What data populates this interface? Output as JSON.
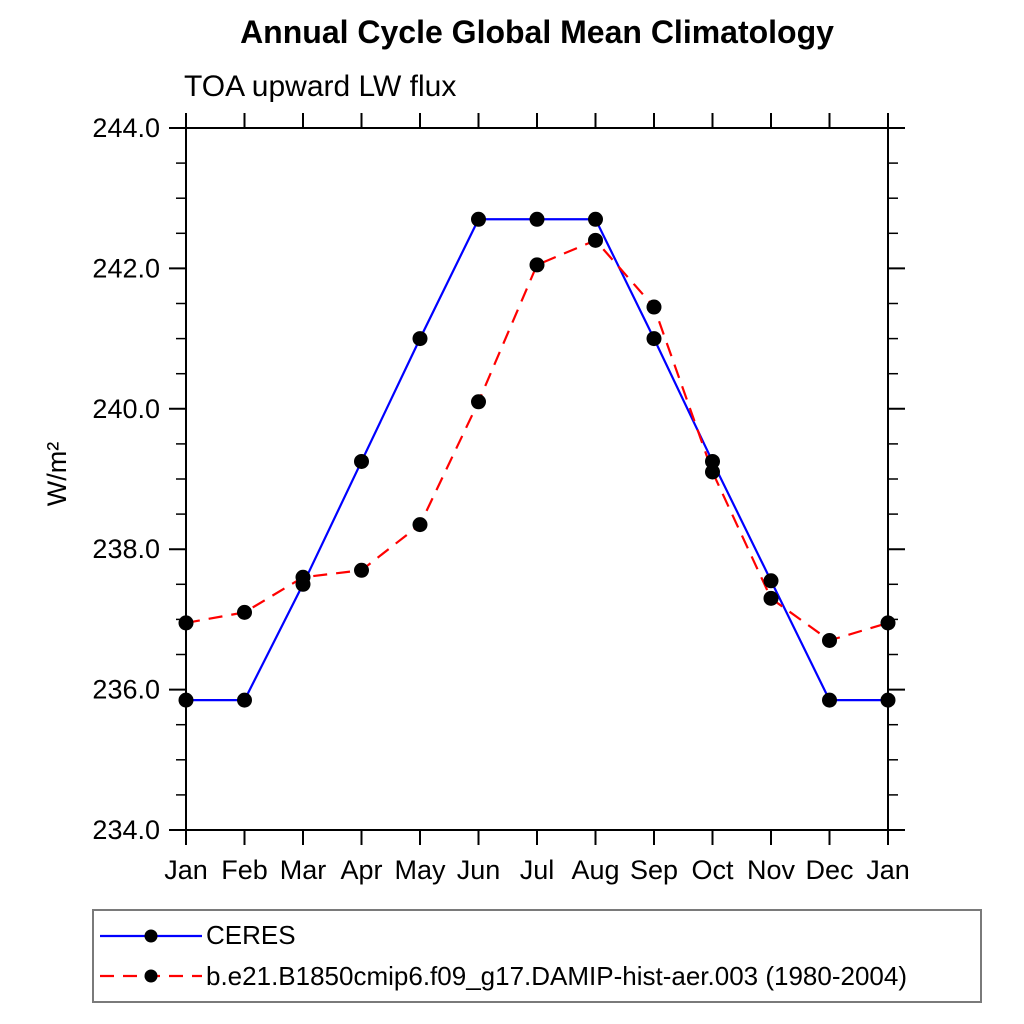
{
  "chart_data": {
    "type": "line",
    "title": "Annual Cycle Global Mean Climatology",
    "subtitle": "TOA upward LW flux",
    "ylabel": "W/m²",
    "xlabel": "",
    "x_tick_labels": [
      "Jan",
      "Feb",
      "Mar",
      "Apr",
      "May",
      "Jun",
      "Jul",
      "Aug",
      "Sep",
      "Oct",
      "Nov",
      "Dec",
      "Jan"
    ],
    "ylim": [
      234.0,
      244.0
    ],
    "y_major_ticks": [
      234.0,
      236.0,
      238.0,
      240.0,
      242.0,
      244.0
    ],
    "y_minor_step": 0.5,
    "grid": false,
    "legend_position": "bottom-left-box",
    "frame_color": "#000000",
    "marker_color": "#000000",
    "series": [
      {
        "name": "CERES",
        "color": "#0000ff",
        "line_style": "solid",
        "marker": "filled-circle",
        "values": [
          235.85,
          235.85,
          237.5,
          239.25,
          241.0,
          242.7,
          242.7,
          242.7,
          241.0,
          239.25,
          237.55,
          235.85,
          235.85
        ]
      },
      {
        "name": "b.e21.B1850cmip6.f09_g17.DAMIP-hist-aer.003 (1980-2004)",
        "color": "#ff0000",
        "line_style": "dashed",
        "marker": "filled-circle",
        "values": [
          236.95,
          237.1,
          237.6,
          237.7,
          238.35,
          240.1,
          242.05,
          242.4,
          241.45,
          239.1,
          237.3,
          236.7,
          236.95
        ]
      }
    ]
  }
}
